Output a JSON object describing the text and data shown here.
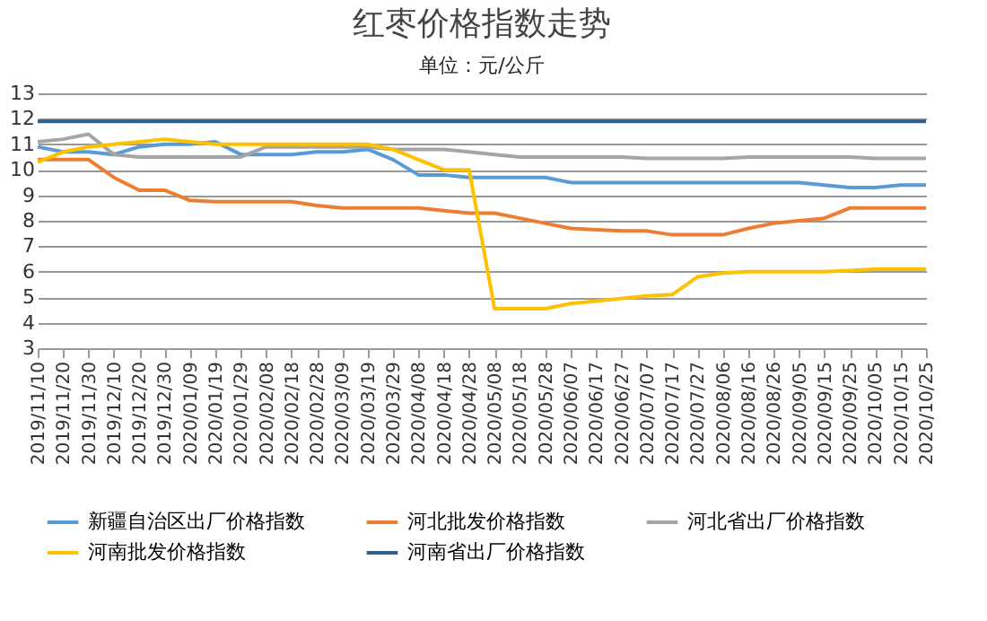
{
  "chart_data": {
    "type": "line",
    "title": "红枣价格指数走势",
    "subtitle": "单位：元/公斤",
    "categories": [
      "2019/11/10",
      "2019/11/20",
      "2019/11/30",
      "2019/12/10",
      "2019/12/20",
      "2019/12/30",
      "2020/01/09",
      "2020/01/19",
      "2020/01/29",
      "2020/02/08",
      "2020/02/18",
      "2020/02/28",
      "2020/03/09",
      "2020/03/19",
      "2020/03/29",
      "2020/04/08",
      "2020/04/18",
      "2020/04/28",
      "2020/05/08",
      "2020/05/18",
      "2020/05/28",
      "2020/06/07",
      "2020/06/17",
      "2020/06/27",
      "2020/07/07",
      "2020/07/17",
      "2020/07/27",
      "2020/08/06",
      "2020/08/16",
      "2020/08/26",
      "2020/09/05",
      "2020/09/15",
      "2020/09/25",
      "2020/10/05",
      "2020/10/15",
      "2020/10/25"
    ],
    "series": [
      {
        "name": "新疆自治区出厂价格指数",
        "color": "#5b9bd5",
        "values": [
          10.9,
          10.7,
          10.7,
          10.6,
          10.9,
          11.0,
          11.0,
          11.1,
          10.6,
          10.6,
          10.6,
          10.7,
          10.7,
          10.8,
          10.4,
          9.8,
          9.8,
          9.7,
          9.7,
          9.7,
          9.7,
          9.5,
          9.5,
          9.5,
          9.5,
          9.5,
          9.5,
          9.5,
          9.5,
          9.5,
          9.5,
          9.4,
          9.3,
          9.3,
          9.4,
          9.4
        ]
      },
      {
        "name": "河北批发价格指数",
        "color": "#ed7d31",
        "values": [
          10.4,
          10.4,
          10.4,
          9.7,
          9.2,
          9.2,
          8.8,
          8.75,
          8.75,
          8.75,
          8.75,
          8.6,
          8.5,
          8.5,
          8.5,
          8.5,
          8.4,
          8.3,
          8.3,
          8.1,
          7.9,
          7.7,
          7.65,
          7.6,
          7.6,
          7.45,
          7.45,
          7.45,
          7.7,
          7.9,
          8.0,
          8.1,
          8.5,
          8.5,
          8.5,
          8.5
        ]
      },
      {
        "name": "河北省出厂价格指数",
        "color": "#a5a5a5",
        "values": [
          11.1,
          11.2,
          11.4,
          10.6,
          10.5,
          10.5,
          10.5,
          10.5,
          10.5,
          10.9,
          10.9,
          10.9,
          10.9,
          10.9,
          10.8,
          10.8,
          10.8,
          10.7,
          10.6,
          10.5,
          10.5,
          10.5,
          10.5,
          10.5,
          10.45,
          10.45,
          10.45,
          10.45,
          10.5,
          10.5,
          10.5,
          10.5,
          10.5,
          10.45,
          10.45,
          10.45
        ]
      },
      {
        "name": "河南批发价格指数",
        "color": "#ffc000",
        "values": [
          10.3,
          10.7,
          10.9,
          11.0,
          11.1,
          11.2,
          11.1,
          11.0,
          11.0,
          11.0,
          11.0,
          11.0,
          11.0,
          11.0,
          10.8,
          10.4,
          10.0,
          10.0,
          4.55,
          4.55,
          4.55,
          4.75,
          4.85,
          4.95,
          5.05,
          5.1,
          5.8,
          5.95,
          6.0,
          6.0,
          6.0,
          6.0,
          6.05,
          6.1,
          6.1,
          6.1
        ]
      },
      {
        "name": "河南省出厂价格指数",
        "color": "#2e5f8f",
        "values": [
          11.9,
          11.9,
          11.9,
          11.9,
          11.9,
          11.9,
          11.9,
          11.9,
          11.9,
          11.9,
          11.9,
          11.9,
          11.9,
          11.9,
          11.9,
          11.9,
          11.9,
          11.9,
          11.9,
          11.9,
          11.9,
          11.9,
          11.9,
          11.9,
          11.9,
          11.9,
          11.9,
          11.9,
          11.9,
          11.9,
          11.9,
          11.9,
          11.9,
          11.9,
          11.9,
          11.9
        ]
      }
    ],
    "ylim": [
      3,
      13
    ],
    "yticks": [
      3,
      4,
      5,
      6,
      7,
      8,
      9,
      10,
      11,
      12,
      13
    ],
    "grid": "y",
    "legend": "bottom",
    "marker": "none",
    "line_style": "solid"
  }
}
